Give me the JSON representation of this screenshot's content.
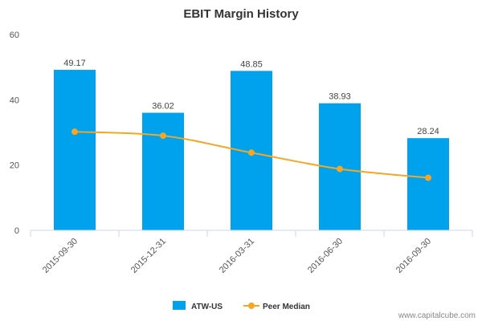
{
  "chart_data": {
    "type": "bar",
    "title": "EBIT Margin History",
    "categories": [
      "2015-09-30",
      "2015-12-31",
      "2016-03-31",
      "2016-06-30",
      "2016-09-30"
    ],
    "series": [
      {
        "name": "ATW-US",
        "kind": "bar",
        "values": [
          49.17,
          36.02,
          48.85,
          38.93,
          28.24
        ],
        "labels": [
          "49.17",
          "36.02",
          "48.85",
          "38.93",
          "28.24"
        ],
        "color": "#00a2ee"
      },
      {
        "name": "Peer Median",
        "kind": "line",
        "values": [
          30.2,
          29.0,
          23.8,
          18.8,
          16.1
        ],
        "color": "#f5a623"
      }
    ],
    "ylim": [
      0,
      60
    ],
    "yticks": [
      0,
      20,
      40,
      60
    ],
    "grid": false,
    "legend_position": "bottom-center"
  },
  "watermark": "www.capitalcube.com",
  "colors": {
    "axis": "#ccd6eb",
    "text": "#333333"
  }
}
